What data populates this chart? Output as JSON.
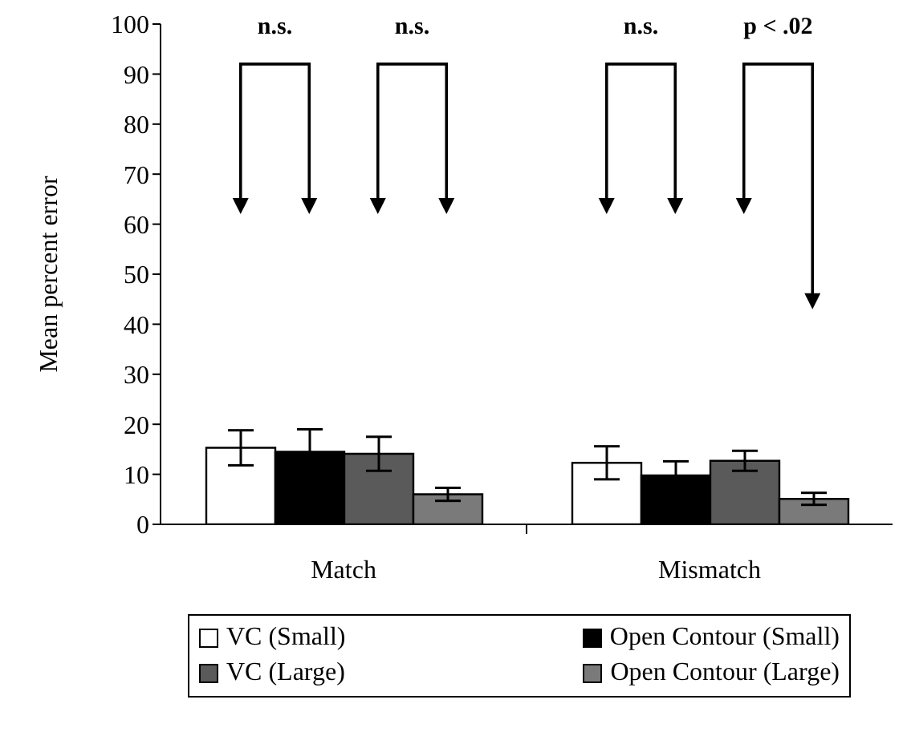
{
  "chart_data": {
    "type": "bar",
    "ylabel": "Mean percent error",
    "categories": [
      "Match",
      "Mismatch"
    ],
    "series": [
      {
        "name": "VC (Small)",
        "color": "#ffffff",
        "values": [
          15.3,
          12.3
        ],
        "errors": [
          3.5,
          3.3
        ]
      },
      {
        "name": "Open Contour (Small)",
        "color": "#000000",
        "values": [
          14.5,
          9.8
        ],
        "errors": [
          4.5,
          2.8
        ]
      },
      {
        "name": "VC (Large)",
        "color": "#5a5a5a",
        "values": [
          14.1,
          12.7
        ],
        "errors": [
          3.4,
          2.0
        ]
      },
      {
        "name": "Open Contour (Large)",
        "color": "#7a7a7a",
        "values": [
          6.0,
          5.1
        ],
        "errors": [
          1.3,
          1.2
        ]
      }
    ],
    "ylim": [
      0,
      100
    ],
    "yticks": [
      0,
      10,
      20,
      30,
      40,
      50,
      60,
      70,
      80,
      90,
      100
    ],
    "annotations": [
      "n.s.",
      "n.s.",
      "n.s.",
      "p < .02"
    ],
    "legend": "bottom",
    "grid": false
  }
}
